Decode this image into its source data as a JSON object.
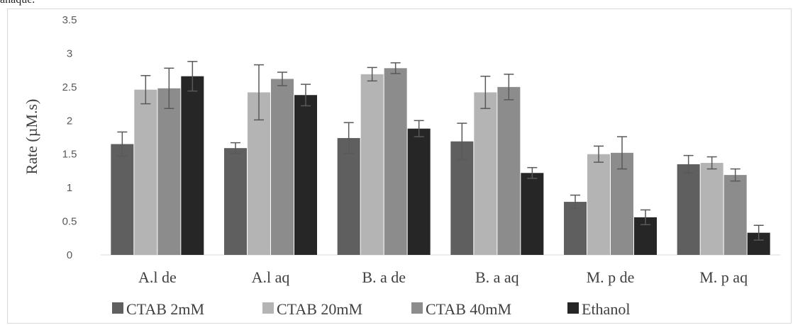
{
  "top_text": "anaque.",
  "chart_data": {
    "type": "bar",
    "categories": [
      "A.l de",
      "A.l aq",
      "B. a de",
      "B. a aq",
      "M. p de",
      "M. p aq"
    ],
    "series": [
      {
        "name": "CTAB 2mM",
        "color": "#5f5f5f",
        "values": [
          1.65,
          1.59,
          1.74,
          1.69,
          0.79,
          1.35
        ],
        "errors": [
          0.18,
          0.08,
          0.23,
          0.27,
          0.1,
          0.13
        ]
      },
      {
        "name": "CTAB 20mM",
        "color": "#b4b4b4",
        "values": [
          2.46,
          2.42,
          2.69,
          2.42,
          1.5,
          1.37
        ],
        "errors": [
          0.21,
          0.41,
          0.1,
          0.24,
          0.12,
          0.09
        ]
      },
      {
        "name": "CTAB 40mM",
        "color": "#8c8c8c",
        "values": [
          2.48,
          2.62,
          2.78,
          2.5,
          1.52,
          1.19
        ],
        "errors": [
          0.3,
          0.1,
          0.08,
          0.19,
          0.24,
          0.09
        ]
      },
      {
        "name": "Ethanol",
        "color": "#262626",
        "values": [
          2.66,
          2.38,
          1.88,
          1.22,
          0.56,
          0.33
        ],
        "errors": [
          0.22,
          0.16,
          0.12,
          0.08,
          0.11,
          0.11
        ]
      }
    ],
    "ylabel": "Rate (µM.s)",
    "xlabel": "",
    "ylim": [
      0,
      3.5
    ],
    "yticks": [
      "0",
      "0.5",
      "1",
      "1.5",
      "2",
      "2.5",
      "3",
      "3.5"
    ],
    "grid": false,
    "legend_position": "bottom"
  }
}
